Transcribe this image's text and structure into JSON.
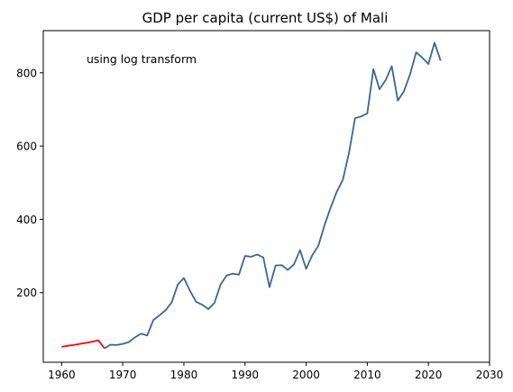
{
  "chart_data": {
    "type": "line",
    "title": "GDP per capita (current US$) of Mali",
    "annotation": "using log transform",
    "xlabel": "",
    "ylabel": "",
    "xlim": [
      1957,
      2030
    ],
    "ylim": [
      10,
      915
    ],
    "xticks": [
      1960,
      1970,
      1980,
      1990,
      2000,
      2010,
      2020,
      2030
    ],
    "yticks": [
      200,
      400,
      600,
      800
    ],
    "grid": false,
    "colors": {
      "imputed": "#ff0000",
      "observed": "#3a6699"
    },
    "series": [
      {
        "color_key": "imputed",
        "points": [
          [
            1960,
            52
          ],
          [
            1961,
            55
          ],
          [
            1962,
            57
          ],
          [
            1963,
            60
          ],
          [
            1964,
            63
          ],
          [
            1965,
            66
          ],
          [
            1966,
            70
          ],
          [
            1967,
            48
          ]
        ]
      },
      {
        "color_key": "observed",
        "points": [
          [
            1967,
            48
          ],
          [
            1968,
            58
          ],
          [
            1969,
            57
          ],
          [
            1970,
            60
          ],
          [
            1971,
            65
          ],
          [
            1972,
            78
          ],
          [
            1973,
            88
          ],
          [
            1974,
            83
          ],
          [
            1975,
            125
          ],
          [
            1976,
            138
          ],
          [
            1977,
            152
          ],
          [
            1978,
            173
          ],
          [
            1979,
            222
          ],
          [
            1980,
            240
          ],
          [
            1981,
            205
          ],
          [
            1982,
            175
          ],
          [
            1983,
            167
          ],
          [
            1984,
            155
          ],
          [
            1985,
            172
          ],
          [
            1986,
            222
          ],
          [
            1987,
            247
          ],
          [
            1988,
            252
          ],
          [
            1989,
            249
          ],
          [
            1990,
            300
          ],
          [
            1991,
            298
          ],
          [
            1992,
            304
          ],
          [
            1993,
            296
          ],
          [
            1994,
            215
          ],
          [
            1995,
            274
          ],
          [
            1996,
            275
          ],
          [
            1997,
            262
          ],
          [
            1998,
            277
          ],
          [
            1999,
            316
          ],
          [
            2000,
            265
          ],
          [
            2001,
            302
          ],
          [
            2002,
            328
          ],
          [
            2003,
            384
          ],
          [
            2004,
            432
          ],
          [
            2005,
            475
          ],
          [
            2006,
            508
          ],
          [
            2007,
            581
          ],
          [
            2008,
            676
          ],
          [
            2009,
            681
          ],
          [
            2010,
            689
          ],
          [
            2011,
            810
          ],
          [
            2012,
            755
          ],
          [
            2013,
            780
          ],
          [
            2014,
            818
          ],
          [
            2015,
            724
          ],
          [
            2016,
            750
          ],
          [
            2017,
            796
          ],
          [
            2018,
            856
          ],
          [
            2019,
            841
          ],
          [
            2020,
            824
          ],
          [
            2021,
            882
          ],
          [
            2022,
            833
          ]
        ]
      }
    ]
  }
}
